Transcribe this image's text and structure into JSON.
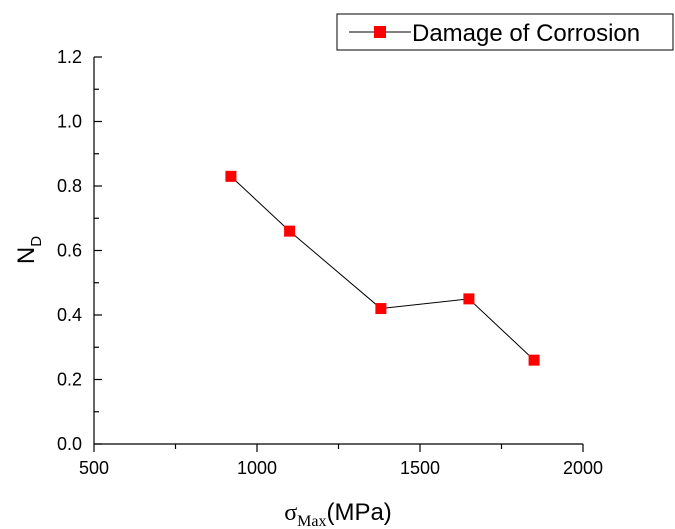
{
  "chart_data": {
    "type": "line",
    "x": [
      920,
      1100,
      1380,
      1650,
      1850
    ],
    "series": [
      {
        "name": "Damage of Corrosion",
        "values": [
          0.83,
          0.66,
          0.42,
          0.45,
          0.26
        ]
      }
    ],
    "xlabel": {
      "symbol": "σ",
      "subscript": "Max",
      "unit": "(MPa)"
    },
    "ylabel": {
      "main": "N",
      "subscript": "D"
    },
    "xlim": [
      500,
      2000
    ],
    "ylim": [
      0.0,
      1.2
    ],
    "x_ticks": [
      "500",
      "1000",
      "1500",
      "2000"
    ],
    "y_ticks": [
      "0.0",
      "0.2",
      "0.4",
      "0.6",
      "0.8",
      "1.0",
      "1.2"
    ],
    "grid": false,
    "legend_position": "top-right",
    "marker": "square",
    "marker_color": "#ff0000",
    "line_color": "#000000"
  }
}
